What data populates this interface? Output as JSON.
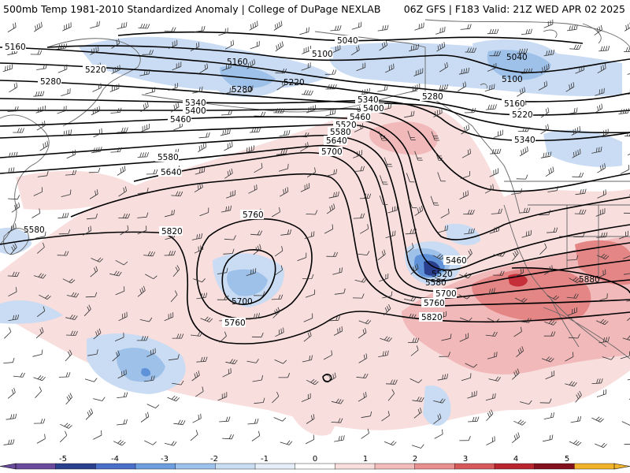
{
  "header": {
    "title": "500mb Temp 1981-2010 Standardized Anomaly | College of DuPage NEXLAB",
    "run_info": "06Z GFS | F183 Valid: 21Z WED APR 02 2025"
  },
  "contours": {
    "labels": [
      "5040",
      "5040",
      "5100",
      "5100",
      "5160",
      "5160",
      "5160",
      "5220",
      "5220",
      "5220",
      "5280",
      "5280",
      "5280",
      "5340",
      "5340",
      "5340",
      "5400",
      "5400",
      "5460",
      "5460",
      "5460",
      "5520",
      "5520",
      "5580",
      "5580",
      "5580",
      "5640",
      "5640",
      "5700",
      "5700",
      "5700",
      "5760",
      "5760",
      "5760",
      "5820",
      "5820",
      "5880"
    ]
  },
  "colorbar": {
    "tick_labels": [
      "-5",
      "-4",
      "-3",
      "-2",
      "-1",
      "0",
      "1",
      "2",
      "3",
      "4",
      "5"
    ],
    "colors": [
      "#6a4a9c",
      "#2b3f8f",
      "#4a6fc8",
      "#6d9ee0",
      "#9cc2ec",
      "#c9ddf3",
      "#e6eff9",
      "#ffffff",
      "#f9dede",
      "#f3bcbc",
      "#e88f8f",
      "#d65a5a",
      "#b8252f",
      "#85101d",
      "#f0b32a"
    ]
  },
  "anomaly_colors": {
    "light_blue": "#cadcf3",
    "mid_blue": "#9ec1ea",
    "blue": "#5f92d9",
    "dark_blue": "#2b3f8f",
    "light_red": "#f9dede",
    "mid_red": "#f1b9b9",
    "red": "#e48686",
    "dark_red": "#c52f39",
    "coast": "#666666",
    "contour": "#000000",
    "barb": "#333333"
  }
}
